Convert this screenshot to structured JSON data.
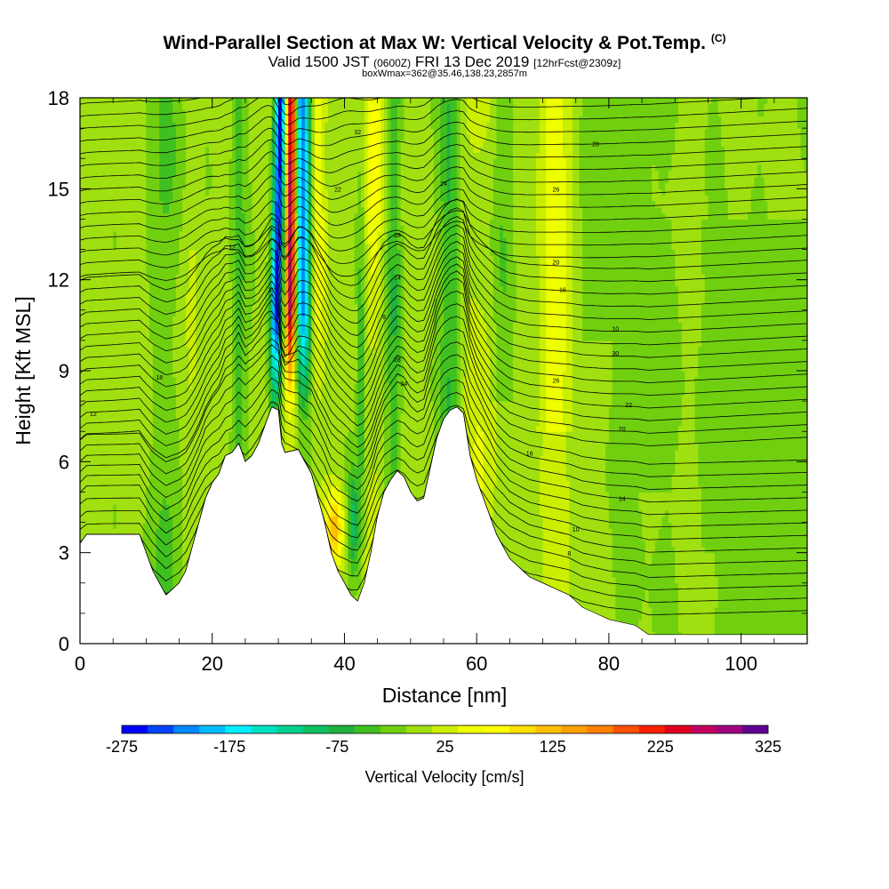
{
  "header": {
    "title_main": "Wind-Parallel Section at Max W: Vertical Velocity & Pot.Temp.",
    "title_unit": "(C)",
    "valid_prefix": "Valid 1500 JST",
    "valid_utc": "(0600Z)",
    "valid_date": "FRI 13 Dec 2019",
    "forecast": "[12hrFcst@2309z]",
    "box_info": "boxWmax=362@35.46,138.23,2857m"
  },
  "chart_data": {
    "type": "heatmap",
    "xlabel": "Distance [nm]",
    "ylabel": "Height [Kft MSL]",
    "xlim": [
      0,
      110
    ],
    "ylim": [
      0,
      18
    ],
    "xticks": [
      0,
      20,
      40,
      60,
      80,
      100
    ],
    "yticks": [
      0,
      3,
      6,
      9,
      12,
      15,
      18
    ],
    "colorbar": {
      "title": "Vertical Velocity [cm/s]",
      "min": -275,
      "max": 325,
      "step": 25,
      "labels": [
        "-275",
        "-175",
        "-75",
        "25",
        "125",
        "225",
        "325"
      ],
      "colors": [
        "#0000ff",
        "#0044ff",
        "#0088ff",
        "#00bbff",
        "#00eeff",
        "#00e0c0",
        "#00d090",
        "#10c060",
        "#20b040",
        "#40c020",
        "#70d010",
        "#a0e010",
        "#ccee00",
        "#eeff00",
        "#ffff00",
        "#ffe000",
        "#ffc000",
        "#ffa000",
        "#ff8000",
        "#ff5000",
        "#ff2000",
        "#e00020",
        "#c00060",
        "#a00080",
        "#600090"
      ]
    },
    "terrain_kft": [
      [
        0,
        3.3
      ],
      [
        1,
        3.6
      ],
      [
        4,
        3.6
      ],
      [
        7,
        3.6
      ],
      [
        9,
        3.6
      ],
      [
        10,
        3.0
      ],
      [
        11,
        2.4
      ],
      [
        12,
        2.0
      ],
      [
        13,
        1.6
      ],
      [
        14,
        1.8
      ],
      [
        15,
        2.0
      ],
      [
        16,
        2.4
      ],
      [
        17,
        3.2
      ],
      [
        18,
        4.0
      ],
      [
        19,
        4.8
      ],
      [
        20,
        5.3
      ],
      [
        21,
        5.6
      ],
      [
        22,
        6.2
      ],
      [
        23,
        6.3
      ],
      [
        24,
        6.6
      ],
      [
        25,
        6.0
      ],
      [
        26,
        6.2
      ],
      [
        27,
        6.6
      ],
      [
        28,
        7.2
      ],
      [
        29,
        7.8
      ],
      [
        30,
        7.7
      ],
      [
        30.5,
        6.6
      ],
      [
        31,
        6.3
      ],
      [
        33,
        6.4
      ],
      [
        34,
        6.0
      ],
      [
        35,
        5.6
      ],
      [
        36,
        4.8
      ],
      [
        37,
        4.0
      ],
      [
        38,
        3.0
      ],
      [
        39,
        2.4
      ],
      [
        40,
        2.0
      ],
      [
        41,
        1.6
      ],
      [
        42,
        1.4
      ],
      [
        43,
        2.0
      ],
      [
        44,
        3.0
      ],
      [
        45,
        4.2
      ],
      [
        46,
        5.0
      ],
      [
        47,
        5.4
      ],
      [
        48,
        5.7
      ],
      [
        49,
        5.5
      ],
      [
        50,
        5.0
      ],
      [
        51,
        4.7
      ],
      [
        52,
        4.8
      ],
      [
        53,
        5.8
      ],
      [
        54,
        6.8
      ],
      [
        55,
        7.4
      ],
      [
        56,
        7.7
      ],
      [
        57,
        7.8
      ],
      [
        58,
        7.6
      ],
      [
        59,
        6.2
      ],
      [
        60,
        5.4
      ],
      [
        61,
        4.8
      ],
      [
        62,
        4.2
      ],
      [
        63,
        3.6
      ],
      [
        64,
        3.2
      ],
      [
        65,
        2.8
      ],
      [
        66,
        2.6
      ],
      [
        67,
        2.4
      ],
      [
        68,
        2.2
      ],
      [
        70,
        2.0
      ],
      [
        72,
        1.8
      ],
      [
        74,
        1.6
      ],
      [
        76,
        1.2
      ],
      [
        78,
        1.0
      ],
      [
        80,
        0.8
      ],
      [
        82,
        0.7
      ],
      [
        84,
        0.6
      ],
      [
        86,
        0.3
      ],
      [
        90,
        0.3
      ],
      [
        100,
        0.3
      ],
      [
        110,
        0.3
      ]
    ],
    "theta_contour_labels": [
      "32",
      "30",
      "28",
      "26",
      "24",
      "22",
      "20",
      "18",
      "16",
      "14",
      "12",
      "10",
      "8"
    ]
  },
  "colors": {
    "background": "#ffffff",
    "terrain": "#ffffff",
    "contour": "#000000"
  }
}
